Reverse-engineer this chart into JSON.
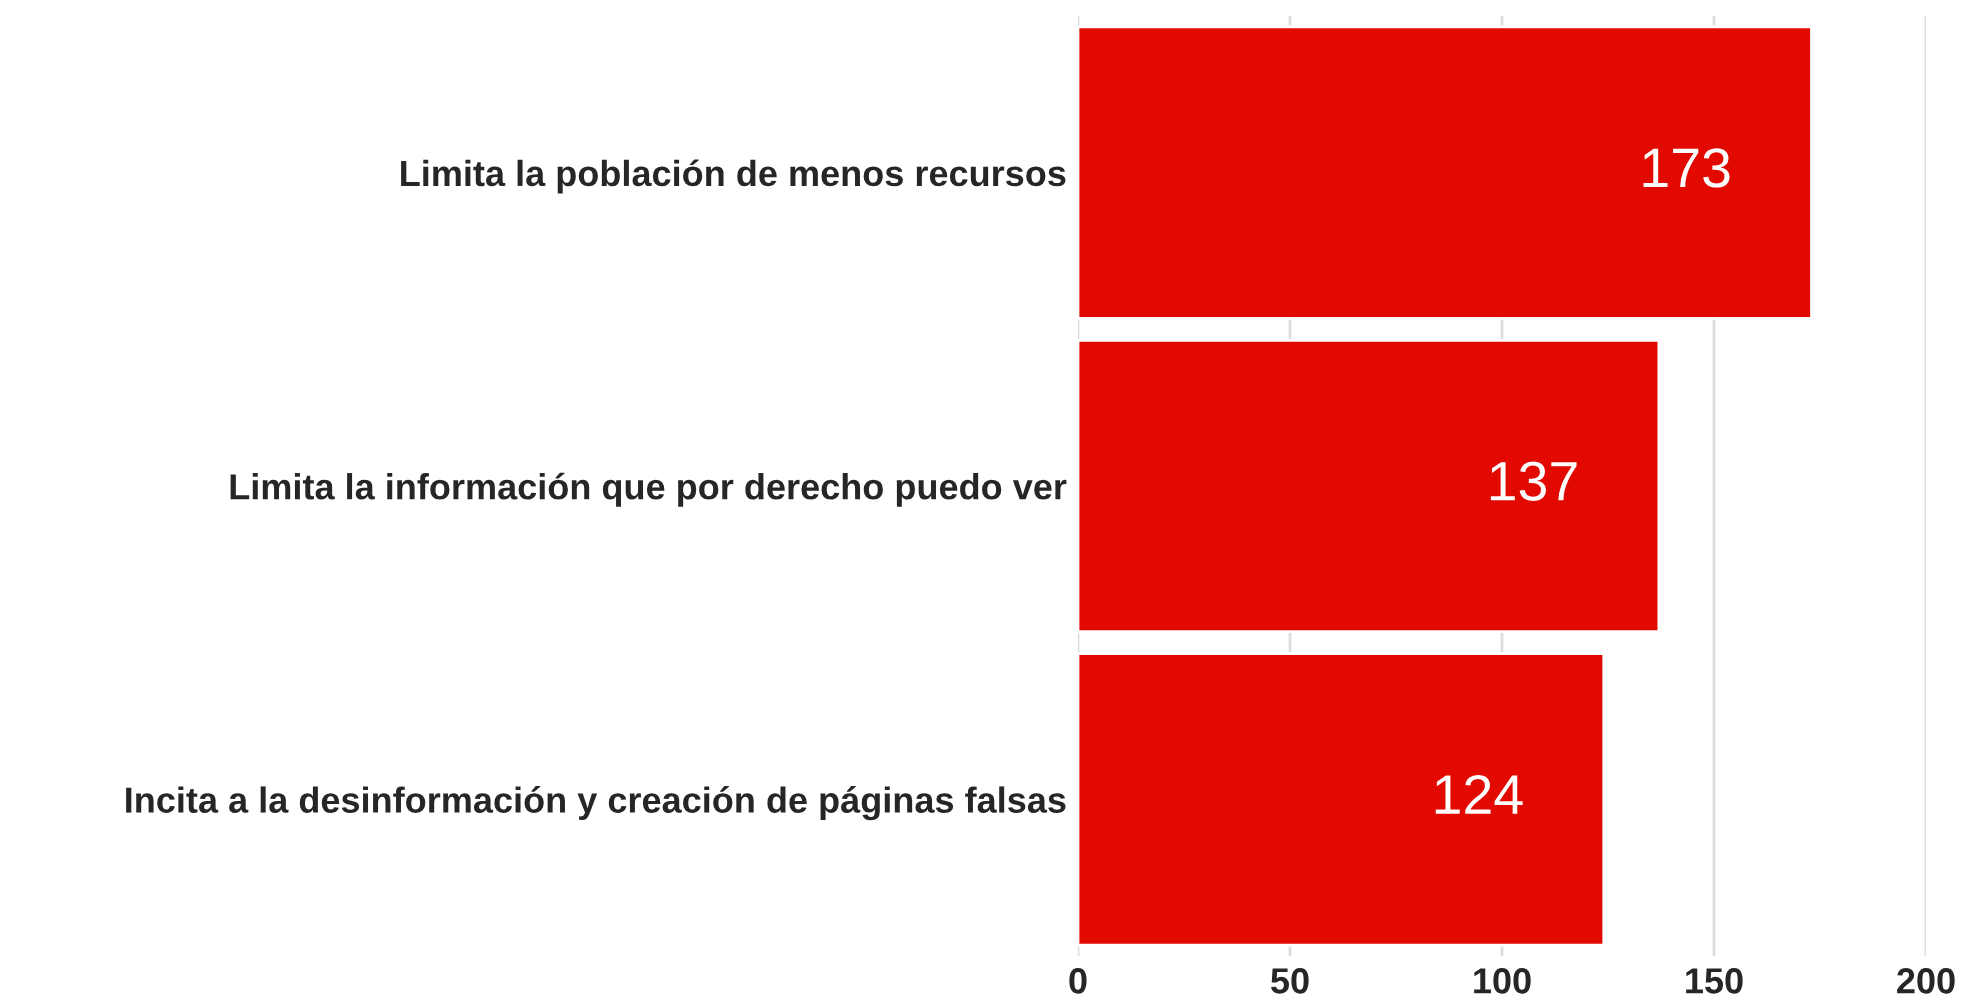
{
  "chart_data": {
    "type": "bar",
    "orientation": "horizontal",
    "categories": [
      "Limita la población de menos recursos",
      "Limita la información que por derecho puedo ver",
      "Incita a la desinformación y creación de páginas falsas"
    ],
    "values": [
      173,
      137,
      124
    ],
    "color": "#e20a00",
    "xlim": [
      0,
      200
    ],
    "xticks": [
      0,
      50,
      100,
      150,
      200
    ],
    "grid": "x",
    "data_labels": true
  }
}
